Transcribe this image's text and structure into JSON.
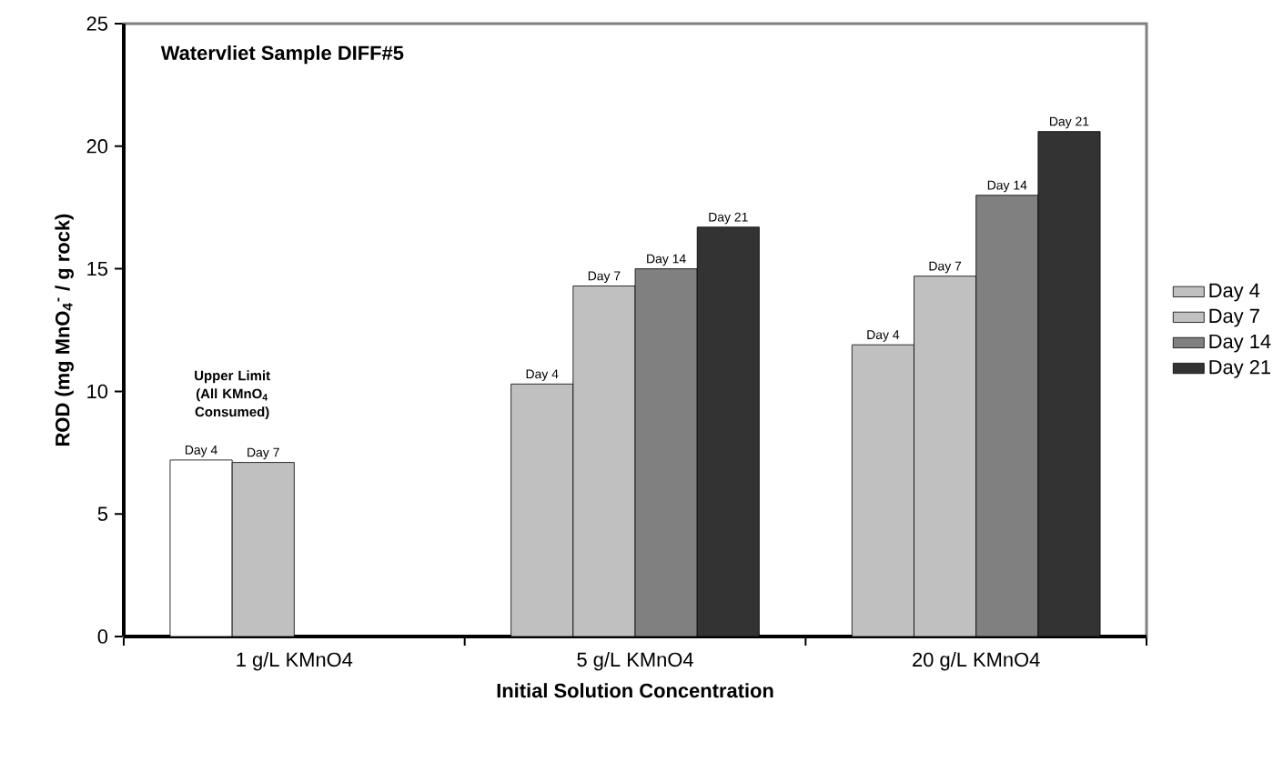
{
  "chart_data": {
    "type": "bar",
    "title": "Watervliet Sample DIFF#5",
    "xlabel": "Initial Solution Concentration",
    "ylabel": "ROD (mg MnO$_{4}$$^{-}$ / g rock)",
    "categories": [
      "1 g/L KMnO4",
      "5 g/L KMnO4",
      "20 g/L KMnO4"
    ],
    "series": [
      {
        "name": "Day 4",
        "color": "#c0c0c0",
        "colors": [
          "#ffffff",
          "#c0c0c0",
          "#c0c0c0"
        ],
        "values": [
          7.2,
          10.3,
          11.9
        ],
        "value_labels": [
          "Day 4",
          "Day 4",
          "Day 4"
        ]
      },
      {
        "name": "Day 7",
        "color": "#c0c0c0",
        "values": [
          7.1,
          14.3,
          14.7
        ],
        "value_labels": [
          "Day 7",
          "Day 7",
          "Day 7"
        ]
      },
      {
        "name": "Day 14",
        "color": "#808080",
        "values": [
          null,
          15.0,
          18.0
        ],
        "value_labels": [
          null,
          "Day 14",
          "Day 14"
        ]
      },
      {
        "name": "Day 21",
        "color": "#333333",
        "values": [
          null,
          16.7,
          20.6
        ],
        "value_labels": [
          null,
          "Day 21",
          "Day 21"
        ]
      }
    ],
    "annotations": [
      "Upper Limit (All KMnO$_{4}$ Consumed)"
    ],
    "ylim": [
      0,
      25
    ],
    "yticks": [
      0,
      5,
      10,
      15,
      20,
      25
    ],
    "legend": "right"
  }
}
